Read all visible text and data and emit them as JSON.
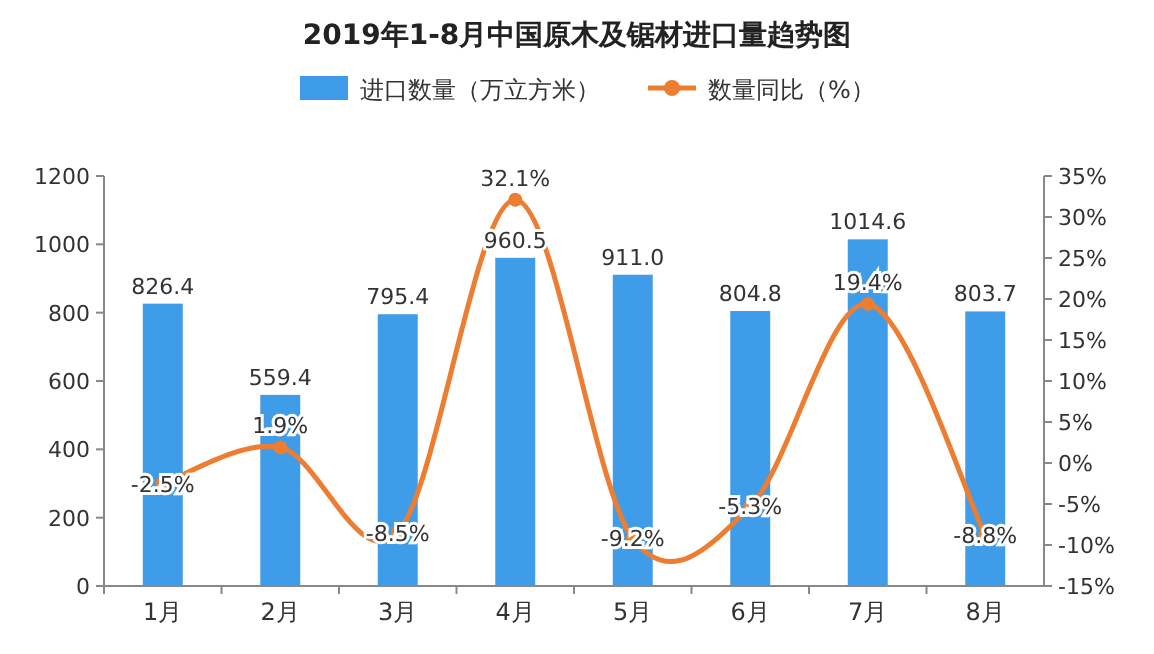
{
  "chart_data": {
    "type": "bar",
    "title": "2019年1-8月中国原木及锯材进口量趋势图",
    "categories": [
      "1月",
      "2月",
      "3月",
      "4月",
      "5月",
      "6月",
      "7月",
      "8月"
    ],
    "series": [
      {
        "name": "进口数量（万立方米）",
        "color": "#3f9ce8",
        "values": [
          826.4,
          559.4,
          795.4,
          960.5,
          911.0,
          804.8,
          1014.6,
          803.7
        ],
        "value_labels": [
          "826.4",
          "559.4",
          "795.4",
          "960.5",
          "911.0",
          "804.8",
          "1014.6",
          "803.7"
        ]
      },
      {
        "name": "数量同比（%）",
        "type": "line",
        "axis": "y2",
        "color": "#ed7d31",
        "marker": "circle",
        "values": [
          -2.5,
          1.9,
          -8.5,
          32.1,
          -9.2,
          -5.3,
          19.4,
          -8.8
        ],
        "value_labels": [
          "-2.5%",
          "1.9%",
          "-8.5%",
          "32.1%",
          "-9.2%",
          "-5.3%",
          "19.4%",
          "-8.8%"
        ]
      }
    ],
    "ylim": [
      0,
      1200
    ],
    "yticks": [
      0,
      200,
      400,
      600,
      800,
      1000,
      1200
    ],
    "y2lim": [
      -15,
      35
    ],
    "y2ticks": [
      {
        "value": -15,
        "label": "-15%"
      },
      {
        "value": -10,
        "label": "-10%"
      },
      {
        "value": -5,
        "label": "-5%"
      },
      {
        "value": 0,
        "label": "0%"
      },
      {
        "value": 5,
        "label": "5%"
      },
      {
        "value": 10,
        "label": "10%"
      },
      {
        "value": 15,
        "label": "15%"
      },
      {
        "value": 20,
        "label": "20%"
      },
      {
        "value": 25,
        "label": "25%"
      },
      {
        "value": 30,
        "label": "30%"
      },
      {
        "value": 35,
        "label": "35%"
      }
    ],
    "legend": "top"
  }
}
